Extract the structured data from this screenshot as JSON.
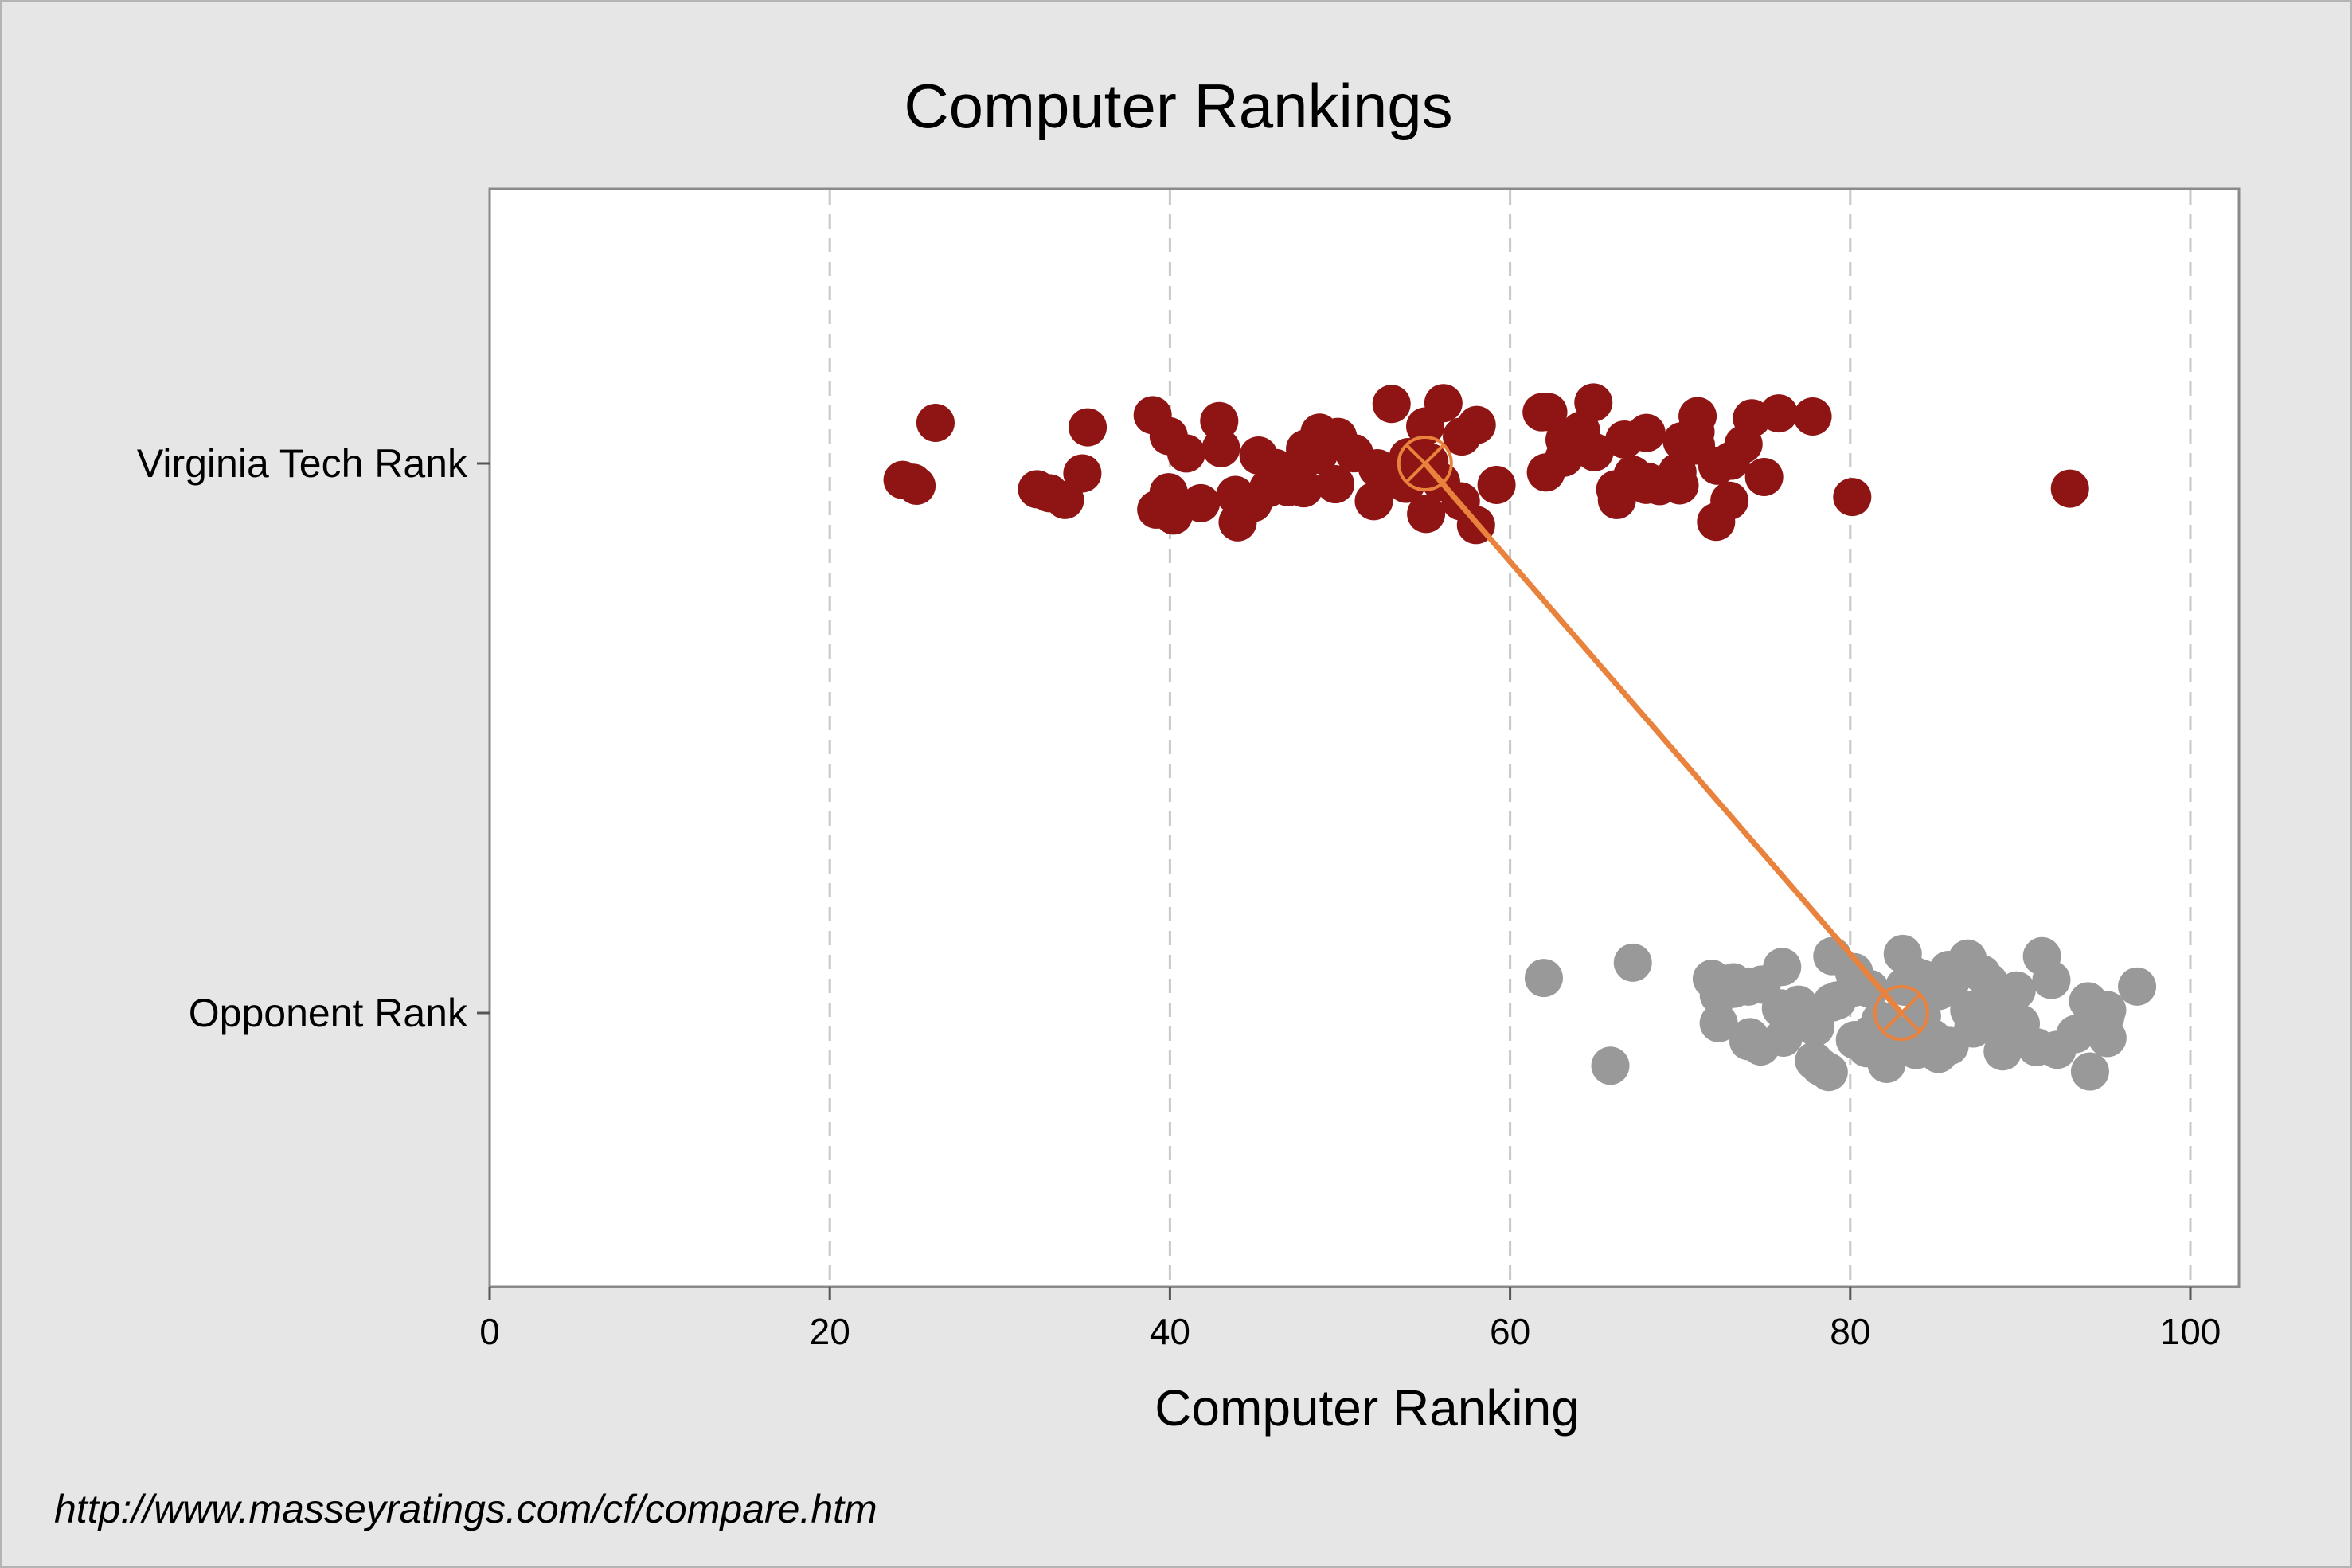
{
  "chart_data": {
    "type": "scatter",
    "title": "Computer Rankings",
    "xlabel": "Computer Ranking",
    "ylabel": "",
    "xlim": [
      0,
      103
    ],
    "xticks": [
      0,
      20,
      40,
      60,
      80,
      100
    ],
    "grid": "vertical dashed",
    "categories": [
      "Virginia Tech Rank",
      "Opponent Rank"
    ],
    "series": [
      {
        "category": "Virginia Tech Rank",
        "color": "#8f1414",
        "mean": 55,
        "values": [
          25,
          24,
          25,
          26,
          32,
          33,
          34,
          35,
          35,
          39,
          39,
          40,
          40,
          40,
          41,
          42,
          43,
          43,
          44,
          44,
          45,
          45,
          46,
          46,
          47,
          47,
          48,
          48,
          48,
          49,
          49,
          50,
          50,
          51,
          52,
          52,
          53,
          53,
          54,
          54,
          55,
          55,
          55,
          56,
          56,
          57,
          57,
          58,
          58,
          59,
          62,
          62,
          62,
          63,
          63,
          64,
          65,
          65,
          66,
          66,
          67,
          67,
          68,
          68,
          68,
          69,
          69,
          70,
          70,
          70,
          71,
          71,
          71,
          72,
          72,
          73,
          73,
          74,
          74,
          75,
          76,
          78,
          80,
          93
        ]
      },
      {
        "category": "Opponent Rank",
        "color": "#999999",
        "mean": 83,
        "values": [
          62,
          66,
          67,
          72,
          72,
          72,
          73,
          73,
          74,
          74,
          74,
          75,
          75,
          76,
          76,
          76,
          77,
          77,
          78,
          78,
          78,
          78,
          79,
          79,
          79,
          79,
          80,
          80,
          80,
          81,
          81,
          81,
          82,
          82,
          82,
          83,
          83,
          83,
          84,
          84,
          84,
          84,
          85,
          85,
          85,
          85,
          86,
          86,
          86,
          87,
          87,
          87,
          88,
          88,
          88,
          89,
          89,
          89,
          90,
          90,
          91,
          91,
          92,
          92,
          93,
          94,
          94,
          95,
          95,
          95,
          97
        ]
      }
    ],
    "mean_line_color": "#e8823d",
    "source": "http://www.masseyratings.com/cf/compare.htm"
  }
}
